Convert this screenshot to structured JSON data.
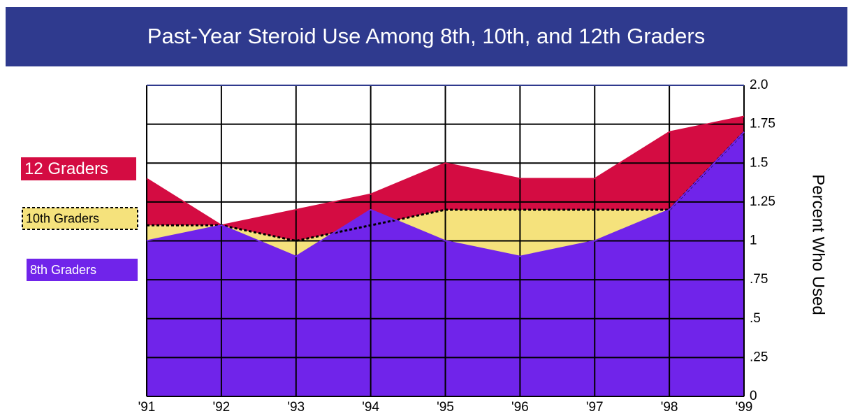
{
  "chart_data": {
    "type": "area",
    "title": "Past-Year Steroid Use Among 8th, 10th, and 12th Graders",
    "y_axis_label": "Percent Who Used",
    "categories": [
      "'91",
      "'92",
      "'93",
      "'94",
      "'95",
      "'96",
      "'97",
      "'98",
      "'99"
    ],
    "series": [
      {
        "name": "12 Graders",
        "color": "#d40c42",
        "values": [
          1.4,
          1.1,
          1.2,
          1.3,
          1.5,
          1.4,
          1.4,
          1.7,
          1.8
        ]
      },
      {
        "name": "10th Graders",
        "color": "#f5e27c",
        "dashed": true,
        "values": [
          1.1,
          1.1,
          1.0,
          1.1,
          1.2,
          1.2,
          1.2,
          1.2,
          1.7
        ]
      },
      {
        "name": "8th Graders",
        "color": "#7024ea",
        "values": [
          1.0,
          1.1,
          0.9,
          1.2,
          1.0,
          0.9,
          1.0,
          1.2,
          1.7
        ]
      }
    ],
    "ylim": [
      0,
      2
    ],
    "yticks": [
      0,
      {
        "value": 0.25,
        "label": ".25"
      },
      {
        "value": 0.5,
        "label": ".5"
      },
      {
        "value": 0.75,
        "label": ".75"
      },
      1,
      1.25,
      1.5,
      1.75,
      {
        "value": 2,
        "label": "2.0"
      }
    ],
    "grid": true,
    "legend": "left"
  }
}
